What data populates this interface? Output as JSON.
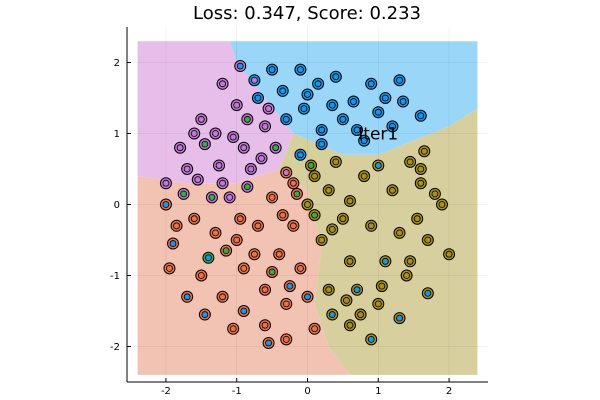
{
  "chart_data": {
    "type": "scatter",
    "title": "Loss: 0.347, Score: 0.233",
    "annotation": {
      "text": "Iter1",
      "x": 1.0,
      "y": 1.0
    },
    "xlim": [
      -2.55,
      2.55
    ],
    "ylim": [
      -2.5,
      2.5
    ],
    "xticks": [
      -2,
      -1,
      0,
      1,
      2
    ],
    "yticks": [
      -2,
      -1,
      0,
      1,
      2
    ],
    "xtick_labels": [
      "-2",
      "-1",
      "0",
      "1",
      "2"
    ],
    "ytick_labels": [
      "-2",
      "-1",
      "0",
      "1",
      "2"
    ],
    "grid": true,
    "legend": "none",
    "background_regions": [
      {
        "class": 1,
        "color": "#99d6f8",
        "polygon": [
          [
            -1.1,
            2.3
          ],
          [
            2.4,
            2.3
          ],
          [
            2.4,
            1.35
          ],
          [
            2.0,
            1.1
          ],
          [
            1.5,
            0.9
          ],
          [
            1.0,
            0.7
          ],
          [
            0.5,
            0.7
          ],
          [
            -0.2,
            1.0
          ],
          [
            -0.6,
            1.5
          ],
          [
            -1.0,
            2.0
          ]
        ]
      },
      {
        "class": 2,
        "color": "#e7bee9",
        "polygon": [
          [
            -2.4,
            2.3
          ],
          [
            -1.1,
            2.3
          ],
          [
            -1.0,
            2.0
          ],
          [
            -0.6,
            1.5
          ],
          [
            -0.2,
            1.0
          ],
          [
            -0.4,
            0.5
          ],
          [
            -1.0,
            0.3
          ],
          [
            -1.7,
            0.3
          ],
          [
            -2.4,
            0.4
          ]
        ]
      },
      {
        "class": 3,
        "color": "#f2c2b3",
        "polygon": [
          [
            -2.4,
            0.4
          ],
          [
            -1.7,
            0.3
          ],
          [
            -1.0,
            0.3
          ],
          [
            -0.4,
            0.5
          ],
          [
            0.0,
            0.2
          ],
          [
            0.2,
            -0.6
          ],
          [
            0.1,
            -1.4
          ],
          [
            0.3,
            -2.0
          ],
          [
            0.6,
            -2.4
          ],
          [
            -2.4,
            -2.4
          ]
        ]
      },
      {
        "class": 4,
        "color": "#d8cf9f",
        "polygon": [
          [
            0.6,
            -2.4
          ],
          [
            2.4,
            -2.4
          ],
          [
            2.4,
            1.35
          ],
          [
            2.0,
            1.1
          ],
          [
            1.5,
            0.9
          ],
          [
            1.0,
            0.7
          ],
          [
            0.5,
            0.7
          ],
          [
            -0.2,
            1.0
          ],
          [
            -0.4,
            0.5
          ],
          [
            0.0,
            0.2
          ],
          [
            0.2,
            -0.6
          ],
          [
            0.1,
            -1.4
          ],
          [
            0.3,
            -2.0
          ]
        ]
      }
    ],
    "series_colors": [
      "#1a95e8",
      "#e97348",
      "#3ca84a",
      "#c07ad3",
      "#a7901d"
    ],
    "points": {
      "note_classes": "each point: [x, y, inner_class, outer_class]",
      "data": [
        [
          -1.4,
          -0.75,
          0,
          2
        ],
        [
          -1.0,
          -0.5,
          1,
          1
        ],
        [
          0.5,
          1.2,
          0,
          0
        ],
        [
          1.1,
          1.5,
          0,
          0
        ],
        [
          1.6,
          0.5,
          4,
          4
        ],
        [
          0.3,
          0.2,
          4,
          4
        ],
        [
          -0.2,
          -0.3,
          1,
          1
        ],
        [
          -0.8,
          0.5,
          3,
          3
        ],
        [
          0.0,
          1.55,
          0,
          0
        ],
        [
          0.8,
          0.9,
          0,
          0
        ],
        [
          -0.5,
          1.9,
          0,
          0
        ],
        [
          -0.1,
          1.9,
          0,
          0
        ],
        [
          0.4,
          1.8,
          0,
          0
        ],
        [
          0.9,
          1.7,
          0,
          0
        ],
        [
          1.3,
          1.75,
          0,
          0
        ],
        [
          -0.7,
          1.5,
          0,
          0
        ],
        [
          -0.3,
          1.2,
          0,
          0
        ],
        [
          0.2,
          1.05,
          0,
          0
        ],
        [
          0.7,
          1.05,
          0,
          0
        ],
        [
          1.2,
          1.1,
          0,
          0
        ],
        [
          -1.2,
          1.7,
          3,
          3
        ],
        [
          -1.5,
          1.2,
          3,
          3
        ],
        [
          -1.8,
          0.8,
          3,
          3
        ],
        [
          -2.0,
          0.3,
          3,
          3
        ],
        [
          -1.7,
          0.5,
          3,
          3
        ],
        [
          -1.3,
          1.0,
          3,
          3
        ],
        [
          -1.0,
          1.4,
          3,
          3
        ],
        [
          -1.2,
          0.3,
          3,
          3
        ],
        [
          -0.9,
          0.8,
          3,
          3
        ],
        [
          -0.6,
          1.1,
          3,
          3
        ],
        [
          -1.85,
          -0.3,
          1,
          1
        ],
        [
          -2.0,
          0.0,
          0,
          1
        ],
        [
          -1.9,
          -0.55,
          0,
          1
        ],
        [
          -1.6,
          -0.2,
          1,
          1
        ],
        [
          -1.5,
          -1.0,
          1,
          1
        ],
        [
          -1.2,
          -1.3,
          1,
          1
        ],
        [
          -0.9,
          -1.5,
          0,
          1
        ],
        [
          -0.6,
          -1.7,
          1,
          1
        ],
        [
          -0.3,
          -1.9,
          1,
          1
        ],
        [
          0.1,
          -1.75,
          1,
          1
        ],
        [
          -1.3,
          -0.4,
          1,
          1
        ],
        [
          -0.9,
          -0.9,
          1,
          1
        ],
        [
          -0.6,
          -1.2,
          1,
          1
        ],
        [
          -0.3,
          -1.4,
          1,
          1
        ],
        [
          0.0,
          -1.3,
          0,
          1
        ],
        [
          -0.7,
          -0.3,
          1,
          1
        ],
        [
          -0.4,
          -0.7,
          1,
          1
        ],
        [
          -0.1,
          -0.9,
          1,
          1
        ],
        [
          -0.5,
          0.1,
          1,
          1
        ],
        [
          -0.2,
          0.3,
          1,
          1
        ],
        [
          0.6,
          -1.7,
          4,
          4
        ],
        [
          1.0,
          -1.4,
          4,
          4
        ],
        [
          1.4,
          -1.0,
          4,
          4
        ],
        [
          1.7,
          -0.5,
          4,
          4
        ],
        [
          1.9,
          0.0,
          4,
          4
        ],
        [
          2.0,
          -0.7,
          4,
          4
        ],
        [
          1.6,
          0.3,
          4,
          4
        ],
        [
          1.2,
          0.2,
          4,
          4
        ],
        [
          0.9,
          -0.3,
          4,
          4
        ],
        [
          0.6,
          -0.8,
          4,
          4
        ],
        [
          0.3,
          -1.2,
          4,
          4
        ],
        [
          0.5,
          -0.2,
          4,
          4
        ],
        [
          0.8,
          0.4,
          4,
          4
        ],
        [
          1.3,
          -0.4,
          4,
          4
        ],
        [
          0.2,
          -0.5,
          4,
          4
        ],
        [
          0.0,
          0.0,
          4,
          4
        ],
        [
          0.1,
          0.4,
          4,
          4
        ],
        [
          0.4,
          0.6,
          4,
          4
        ],
        [
          -0.1,
          0.7,
          0,
          0
        ],
        [
          0.2,
          0.85,
          0,
          0
        ],
        [
          0.9,
          -1.9,
          0,
          4
        ],
        [
          1.3,
          -1.6,
          0,
          4
        ],
        [
          1.7,
          -1.25,
          0,
          4
        ],
        [
          0.7,
          -1.2,
          0,
          4
        ],
        [
          1.1,
          -0.8,
          0,
          4
        ],
        [
          -1.7,
          -1.3,
          0,
          1
        ],
        [
          -1.95,
          -0.9,
          1,
          1
        ],
        [
          -1.45,
          -1.55,
          0,
          1
        ],
        [
          -1.05,
          -1.75,
          1,
          1
        ],
        [
          -0.55,
          -1.95,
          0,
          1
        ],
        [
          0.35,
          -1.55,
          0,
          4
        ],
        [
          0.55,
          -1.35,
          4,
          4
        ],
        [
          0.75,
          -1.55,
          4,
          4
        ],
        [
          1.05,
          -1.15,
          4,
          4
        ],
        [
          1.45,
          -0.8,
          4,
          4
        ],
        [
          1.55,
          -0.2,
          4,
          4
        ],
        [
          1.8,
          0.15,
          4,
          4
        ],
        [
          1.45,
          0.6,
          4,
          4
        ],
        [
          1.65,
          0.75,
          4,
          4
        ],
        [
          1.0,
          0.55,
          0,
          4
        ],
        [
          0.6,
          0.05,
          4,
          4
        ],
        [
          0.35,
          -0.35,
          4,
          4
        ],
        [
          0.1,
          -0.15,
          2,
          4
        ],
        [
          -0.15,
          0.15,
          2,
          1
        ],
        [
          -0.35,
          -0.15,
          1,
          1
        ],
        [
          -0.95,
          -0.2,
          1,
          1
        ],
        [
          -1.15,
          -0.65,
          2,
          1
        ],
        [
          -0.75,
          -0.7,
          1,
          1
        ],
        [
          -0.5,
          -0.95,
          2,
          1
        ],
        [
          -0.25,
          -1.15,
          0,
          1
        ],
        [
          -1.25,
          0.55,
          3,
          3
        ],
        [
          -1.45,
          0.85,
          2,
          3
        ],
        [
          -1.05,
          0.95,
          3,
          3
        ],
        [
          -0.85,
          1.2,
          2,
          3
        ],
        [
          -0.55,
          1.35,
          3,
          3
        ],
        [
          -0.35,
          1.6,
          0,
          0
        ],
        [
          -0.05,
          1.35,
          0,
          0
        ],
        [
          0.35,
          1.4,
          0,
          0
        ],
        [
          0.65,
          1.45,
          0,
          0
        ],
        [
          1.0,
          1.3,
          0,
          0
        ],
        [
          1.35,
          1.45,
          0,
          0
        ],
        [
          1.6,
          1.25,
          0,
          0
        ],
        [
          0.15,
          1.7,
          0,
          0
        ],
        [
          -0.75,
          1.75,
          3,
          0
        ],
        [
          -0.95,
          1.95,
          0,
          3
        ],
        [
          -1.6,
          1.0,
          3,
          3
        ],
        [
          -1.75,
          0.15,
          2,
          3
        ],
        [
          -1.55,
          0.35,
          3,
          3
        ],
        [
          -1.35,
          0.1,
          2,
          3
        ],
        [
          -1.1,
          0.1,
          3,
          3
        ],
        [
          -0.85,
          0.25,
          2,
          3
        ],
        [
          -0.65,
          0.65,
          3,
          3
        ],
        [
          -0.45,
          0.8,
          2,
          3
        ],
        [
          -0.3,
          0.45,
          3,
          1
        ],
        [
          0.05,
          0.55,
          2,
          4
        ]
      ]
    }
  }
}
